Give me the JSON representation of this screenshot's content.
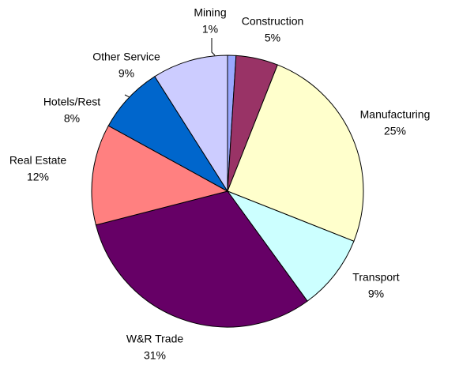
{
  "chart_data": {
    "type": "pie",
    "categories": [
      "Mining",
      "Construction",
      "Manufacturing",
      "Transport",
      "W&R Trade",
      "Real Estate",
      "Hotels/Rest",
      "Other Service"
    ],
    "values": [
      1,
      5,
      25,
      9,
      31,
      12,
      8,
      9
    ],
    "value_labels": [
      "1%",
      "5%",
      "25%",
      "9%",
      "31%",
      "12%",
      "8%",
      "9%"
    ],
    "colors": [
      "#99a8ff",
      "#993366",
      "#ffffcc",
      "#ccffff",
      "#660066",
      "#ff8080",
      "#0066cc",
      "#ccccff"
    ]
  }
}
